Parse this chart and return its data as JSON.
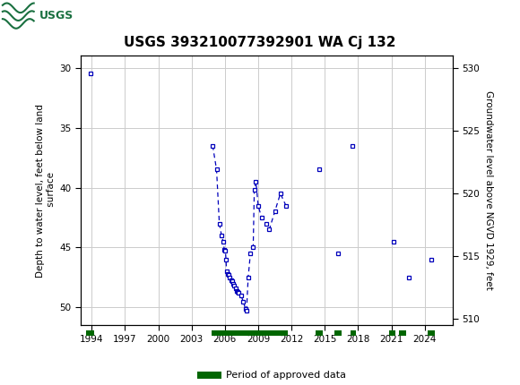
{
  "title": "USGS 393210077392901 WA Cj 132",
  "ylabel_left": "Depth to water level, feet below land\n surface",
  "ylabel_right": "Groundwater level above NGVD 1929, feet",
  "xlim": [
    1993.0,
    2026.5
  ],
  "ylim_left_bottom": 51.5,
  "ylim_left_top": 29.0,
  "ylim_right_bottom": 509.5,
  "ylim_right_top": 531.0,
  "yticks_left": [
    30,
    35,
    40,
    45,
    50
  ],
  "yticks_right": [
    510,
    515,
    520,
    525,
    530
  ],
  "xticks": [
    1994,
    1997,
    2000,
    2003,
    2006,
    2009,
    2012,
    2015,
    2018,
    2021,
    2024
  ],
  "point_color": "#0000bb",
  "line_color": "#0000bb",
  "approved_color": "#006600",
  "usgs_green": "#1a7040",
  "connected_x": [
    2004.9,
    2005.25,
    2005.5,
    2005.7,
    2005.85,
    2005.95,
    2006.05,
    2006.1,
    2006.15,
    2006.25,
    2006.35,
    2006.45,
    2006.55,
    2006.65,
    2006.75,
    2006.85,
    2006.95,
    2007.05,
    2007.15,
    2007.25,
    2007.45,
    2007.65,
    2007.85,
    2007.95,
    2008.1,
    2008.3,
    2008.55,
    2008.65,
    2008.8,
    2009.0,
    2009.3,
    2009.7,
    2010.0,
    2010.5,
    2011.0,
    2011.5
  ],
  "connected_y": [
    36.5,
    38.5,
    43.0,
    44.0,
    44.5,
    45.2,
    45.3,
    46.0,
    47.0,
    47.2,
    47.3,
    47.5,
    47.7,
    47.8,
    48.0,
    48.2,
    48.4,
    48.6,
    48.7,
    48.8,
    49.0,
    49.5,
    50.1,
    50.3,
    47.5,
    45.5,
    45.0,
    40.2,
    39.5,
    41.5,
    42.5,
    43.0,
    43.5,
    42.0,
    40.5,
    41.5
  ],
  "isolated_x": [
    1993.9,
    2014.5,
    2016.2,
    2017.5,
    2021.2,
    2022.6,
    2024.6
  ],
  "isolated_y": [
    30.5,
    38.5,
    45.5,
    36.5,
    44.5,
    47.5,
    46.0
  ],
  "approved_bars": [
    {
      "start": 1993.5,
      "end": 1994.2
    },
    {
      "start": 2004.8,
      "end": 2011.7
    },
    {
      "start": 2014.2,
      "end": 2014.8
    },
    {
      "start": 2015.9,
      "end": 2016.5
    },
    {
      "start": 2017.3,
      "end": 2017.8
    },
    {
      "start": 2020.8,
      "end": 2021.4
    },
    {
      "start": 2021.7,
      "end": 2022.3
    },
    {
      "start": 2024.3,
      "end": 2024.9
    }
  ],
  "fig_width": 5.8,
  "fig_height": 4.3,
  "dpi": 100
}
